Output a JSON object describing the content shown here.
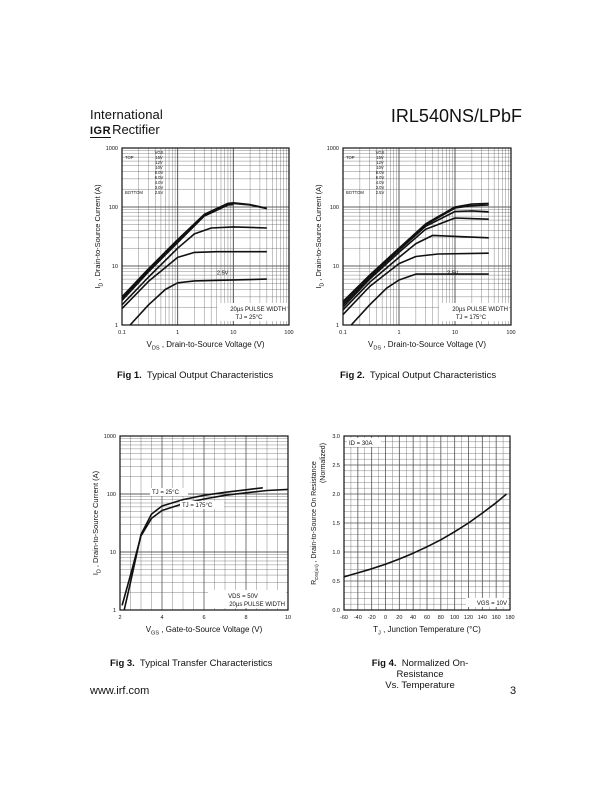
{
  "header": {
    "logo_line1": "International",
    "logo_mark": "IGR",
    "logo_line2": "Rectifier",
    "part_number": "IRL540NS/LPbF"
  },
  "footer": {
    "url": "www.irf.com",
    "page": "3"
  },
  "colors": {
    "ink": "#111111",
    "grid": "#555555"
  },
  "chart_data": [
    {
      "type": "line",
      "figure": "Fig 1.",
      "caption": "Typical Output Characteristics",
      "x_scale": "log",
      "y_scale": "log",
      "xlim": [
        0.1,
        100
      ],
      "ylim": [
        1,
        1000
      ],
      "x_ticks": [
        "0.1",
        "1",
        "10",
        "100"
      ],
      "y_ticks": [
        "1",
        "10",
        "100",
        "1000"
      ],
      "xlabel_sym": "V",
      "xlabel_sub": "DS",
      "xlabel_rest": " , Drain-to-Source Voltage (V)",
      "ylabel_sym": "I",
      "ylabel_sub": "D",
      "ylabel_rest": " , Drain-to-Source Current (A)",
      "legend_title": "VGS",
      "legend": [
        [
          "TOP",
          "15V"
        ],
        [
          "",
          "12V"
        ],
        [
          "",
          "10V"
        ],
        [
          "",
          "8.0V"
        ],
        [
          "",
          "6.0V"
        ],
        [
          "",
          "4.0V"
        ],
        [
          "",
          "3.0V"
        ],
        [
          "BOTTOM",
          "2.5V"
        ]
      ],
      "annotations": [
        "2.5V",
        "20µs PULSE WIDTH",
        "TJ = 25°C"
      ],
      "series": [
        {
          "label": "15V",
          "x": [
            0.1,
            0.3,
            1,
            3,
            8,
            10,
            20,
            40
          ],
          "y": [
            3.0,
            9,
            28,
            75,
            115,
            118,
            110,
            95
          ]
        },
        {
          "label": "12V",
          "x": [
            0.1,
            0.3,
            1,
            3,
            8,
            10,
            20,
            40
          ],
          "y": [
            2.8,
            8.5,
            27,
            73,
            112,
            115,
            108,
            94
          ]
        },
        {
          "label": "10V",
          "x": [
            0.1,
            0.3,
            1,
            3,
            8,
            10
          ],
          "y": [
            2.6,
            8,
            25,
            70,
            108,
            110
          ]
        },
        {
          "label": "4.0V",
          "x": [
            0.1,
            0.3,
            1,
            2,
            4,
            10,
            40
          ],
          "y": [
            2.2,
            6.5,
            20,
            35,
            44,
            46,
            44
          ]
        },
        {
          "label": "3.0V",
          "x": [
            0.1,
            0.3,
            1,
            2,
            5,
            40
          ],
          "y": [
            1.9,
            5.5,
            14,
            17,
            17.5,
            17.5
          ]
        },
        {
          "label": "2.5V",
          "x": [
            0.14,
            0.3,
            0.6,
            1,
            2,
            40
          ],
          "y": [
            1,
            2.2,
            4,
            5.2,
            5.6,
            6.0
          ]
        }
      ]
    },
    {
      "type": "line",
      "figure": "Fig 2.",
      "caption": "Typical Output Characteristics",
      "x_scale": "log",
      "y_scale": "log",
      "xlim": [
        0.1,
        100
      ],
      "ylim": [
        1,
        1000
      ],
      "x_ticks": [
        "0.1",
        "1",
        "10",
        "100"
      ],
      "y_ticks": [
        "1",
        "10",
        "100",
        "1000"
      ],
      "xlabel_sym": "V",
      "xlabel_sub": "DS",
      "xlabel_rest": " , Drain-to-Source Voltage (V)",
      "ylabel_sym": "I",
      "ylabel_sub": "D",
      "ylabel_rest": " , Drain-to-Source Current (A)",
      "legend_title": "VGS",
      "legend": [
        [
          "TOP",
          "15V"
        ],
        [
          "",
          "12V"
        ],
        [
          "",
          "10V"
        ],
        [
          "",
          "8.0V"
        ],
        [
          "",
          "6.0V"
        ],
        [
          "",
          "4.0V"
        ],
        [
          "",
          "3.0V"
        ],
        [
          "BOTTOM",
          "2.5V"
        ]
      ],
      "annotations": [
        "2.5V",
        "20µs PULSE WIDTH",
        "TJ = 175°C"
      ],
      "series": [
        {
          "label": "15V",
          "x": [
            0.1,
            0.3,
            1,
            3,
            10,
            20,
            40
          ],
          "y": [
            2.5,
            7,
            20,
            52,
            100,
            112,
            115
          ]
        },
        {
          "label": "12V",
          "x": [
            0.1,
            0.3,
            1,
            3,
            10,
            20,
            40
          ],
          "y": [
            2.4,
            6.8,
            19.5,
            50,
            96,
            105,
            108
          ]
        },
        {
          "label": "8.0V",
          "x": [
            0.1,
            0.3,
            1,
            3,
            10,
            20,
            40
          ],
          "y": [
            2.2,
            6.4,
            18.5,
            47,
            84,
            86,
            83
          ]
        },
        {
          "label": "6.0V",
          "x": [
            0.1,
            0.3,
            1,
            3,
            10,
            40
          ],
          "y": [
            2.0,
            6,
            17,
            42,
            65,
            62
          ]
        },
        {
          "label": "4.0V",
          "x": [
            0.1,
            0.3,
            1,
            2,
            4,
            40
          ],
          "y": [
            1.8,
            5.3,
            14,
            24,
            33,
            30
          ]
        },
        {
          "label": "3.0V",
          "x": [
            0.1,
            0.3,
            1,
            2,
            5,
            40
          ],
          "y": [
            1.5,
            4.5,
            11,
            14.5,
            16,
            16.5
          ]
        },
        {
          "label": "2.5V",
          "x": [
            0.14,
            0.3,
            0.6,
            1,
            2,
            40
          ],
          "y": [
            1,
            2.2,
            4.2,
            5.8,
            7.3,
            7.3
          ]
        }
      ]
    },
    {
      "type": "line",
      "figure": "Fig 3.",
      "caption": "Typical Transfer Characteristics",
      "x_scale": "linear",
      "y_scale": "log",
      "xlim": [
        2,
        10
      ],
      "ylim": [
        1,
        1000
      ],
      "x_ticks": [
        "2",
        "4",
        "6",
        "8",
        "10"
      ],
      "y_ticks": [
        "1",
        "10",
        "100",
        "1000"
      ],
      "xlabel_sym": "V",
      "xlabel_sub": "GS",
      "xlabel_rest": " , Gate-to-Source Voltage (V)",
      "ylabel_sym": "I",
      "ylabel_sub": "D",
      "ylabel_rest": " , Drain-to-Source Current (A)",
      "annotations": [
        "TJ = 25°C",
        "TJ = 175°C",
        "VDS = 50V",
        "20µs PULSE WIDTH"
      ],
      "series": [
        {
          "label": "TJ = 25°C",
          "x": [
            2.2,
            2.5,
            3,
            3.5,
            4,
            5,
            6,
            7,
            8,
            8.8
          ],
          "y": [
            1,
            3,
            20,
            45,
            62,
            80,
            95,
            107,
            118,
            128
          ]
        },
        {
          "label": "TJ = 175°C",
          "x": [
            2.1,
            2.5,
            3,
            3.5,
            4,
            5,
            6,
            7,
            8,
            9,
            10
          ],
          "y": [
            1.2,
            4,
            19,
            38,
            52,
            68,
            82,
            95,
            105,
            115,
            120
          ]
        }
      ]
    },
    {
      "type": "line",
      "figure": "Fig 4.",
      "caption_line1": "Normalized On-Resistance",
      "caption_line2": "Vs. Temperature",
      "x_scale": "linear",
      "y_scale": "linear",
      "xlim": [
        -60,
        180
      ],
      "ylim": [
        0,
        3.0
      ],
      "x_ticks": [
        "-60",
        "-40",
        "-20",
        "0",
        "20",
        "40",
        "60",
        "80",
        "100",
        "120",
        "140",
        "160",
        "180"
      ],
      "y_ticks": [
        "0.0",
        "0.5",
        "1.0",
        "1.5",
        "2.0",
        "2.5",
        "3.0"
      ],
      "xlabel_sym": "T",
      "xlabel_sub": "J",
      "xlabel_rest": " , Junction Temperature (°C)",
      "ylabel_sym": "R",
      "ylabel_sub": "DS(on)",
      "ylabel_rest": " ,  Drain-to-Source On Resistance",
      "ylabel_line2": "(Normalized)",
      "annotations": [
        "ID = 30A",
        "VGS = 10V"
      ],
      "series": [
        {
          "label": "RDS(on)",
          "x": [
            -60,
            -40,
            -20,
            0,
            20,
            40,
            60,
            80,
            100,
            120,
            140,
            160,
            175
          ],
          "y": [
            0.57,
            0.64,
            0.71,
            0.79,
            0.88,
            0.98,
            1.09,
            1.21,
            1.35,
            1.5,
            1.67,
            1.85,
            2.0
          ]
        }
      ]
    }
  ]
}
